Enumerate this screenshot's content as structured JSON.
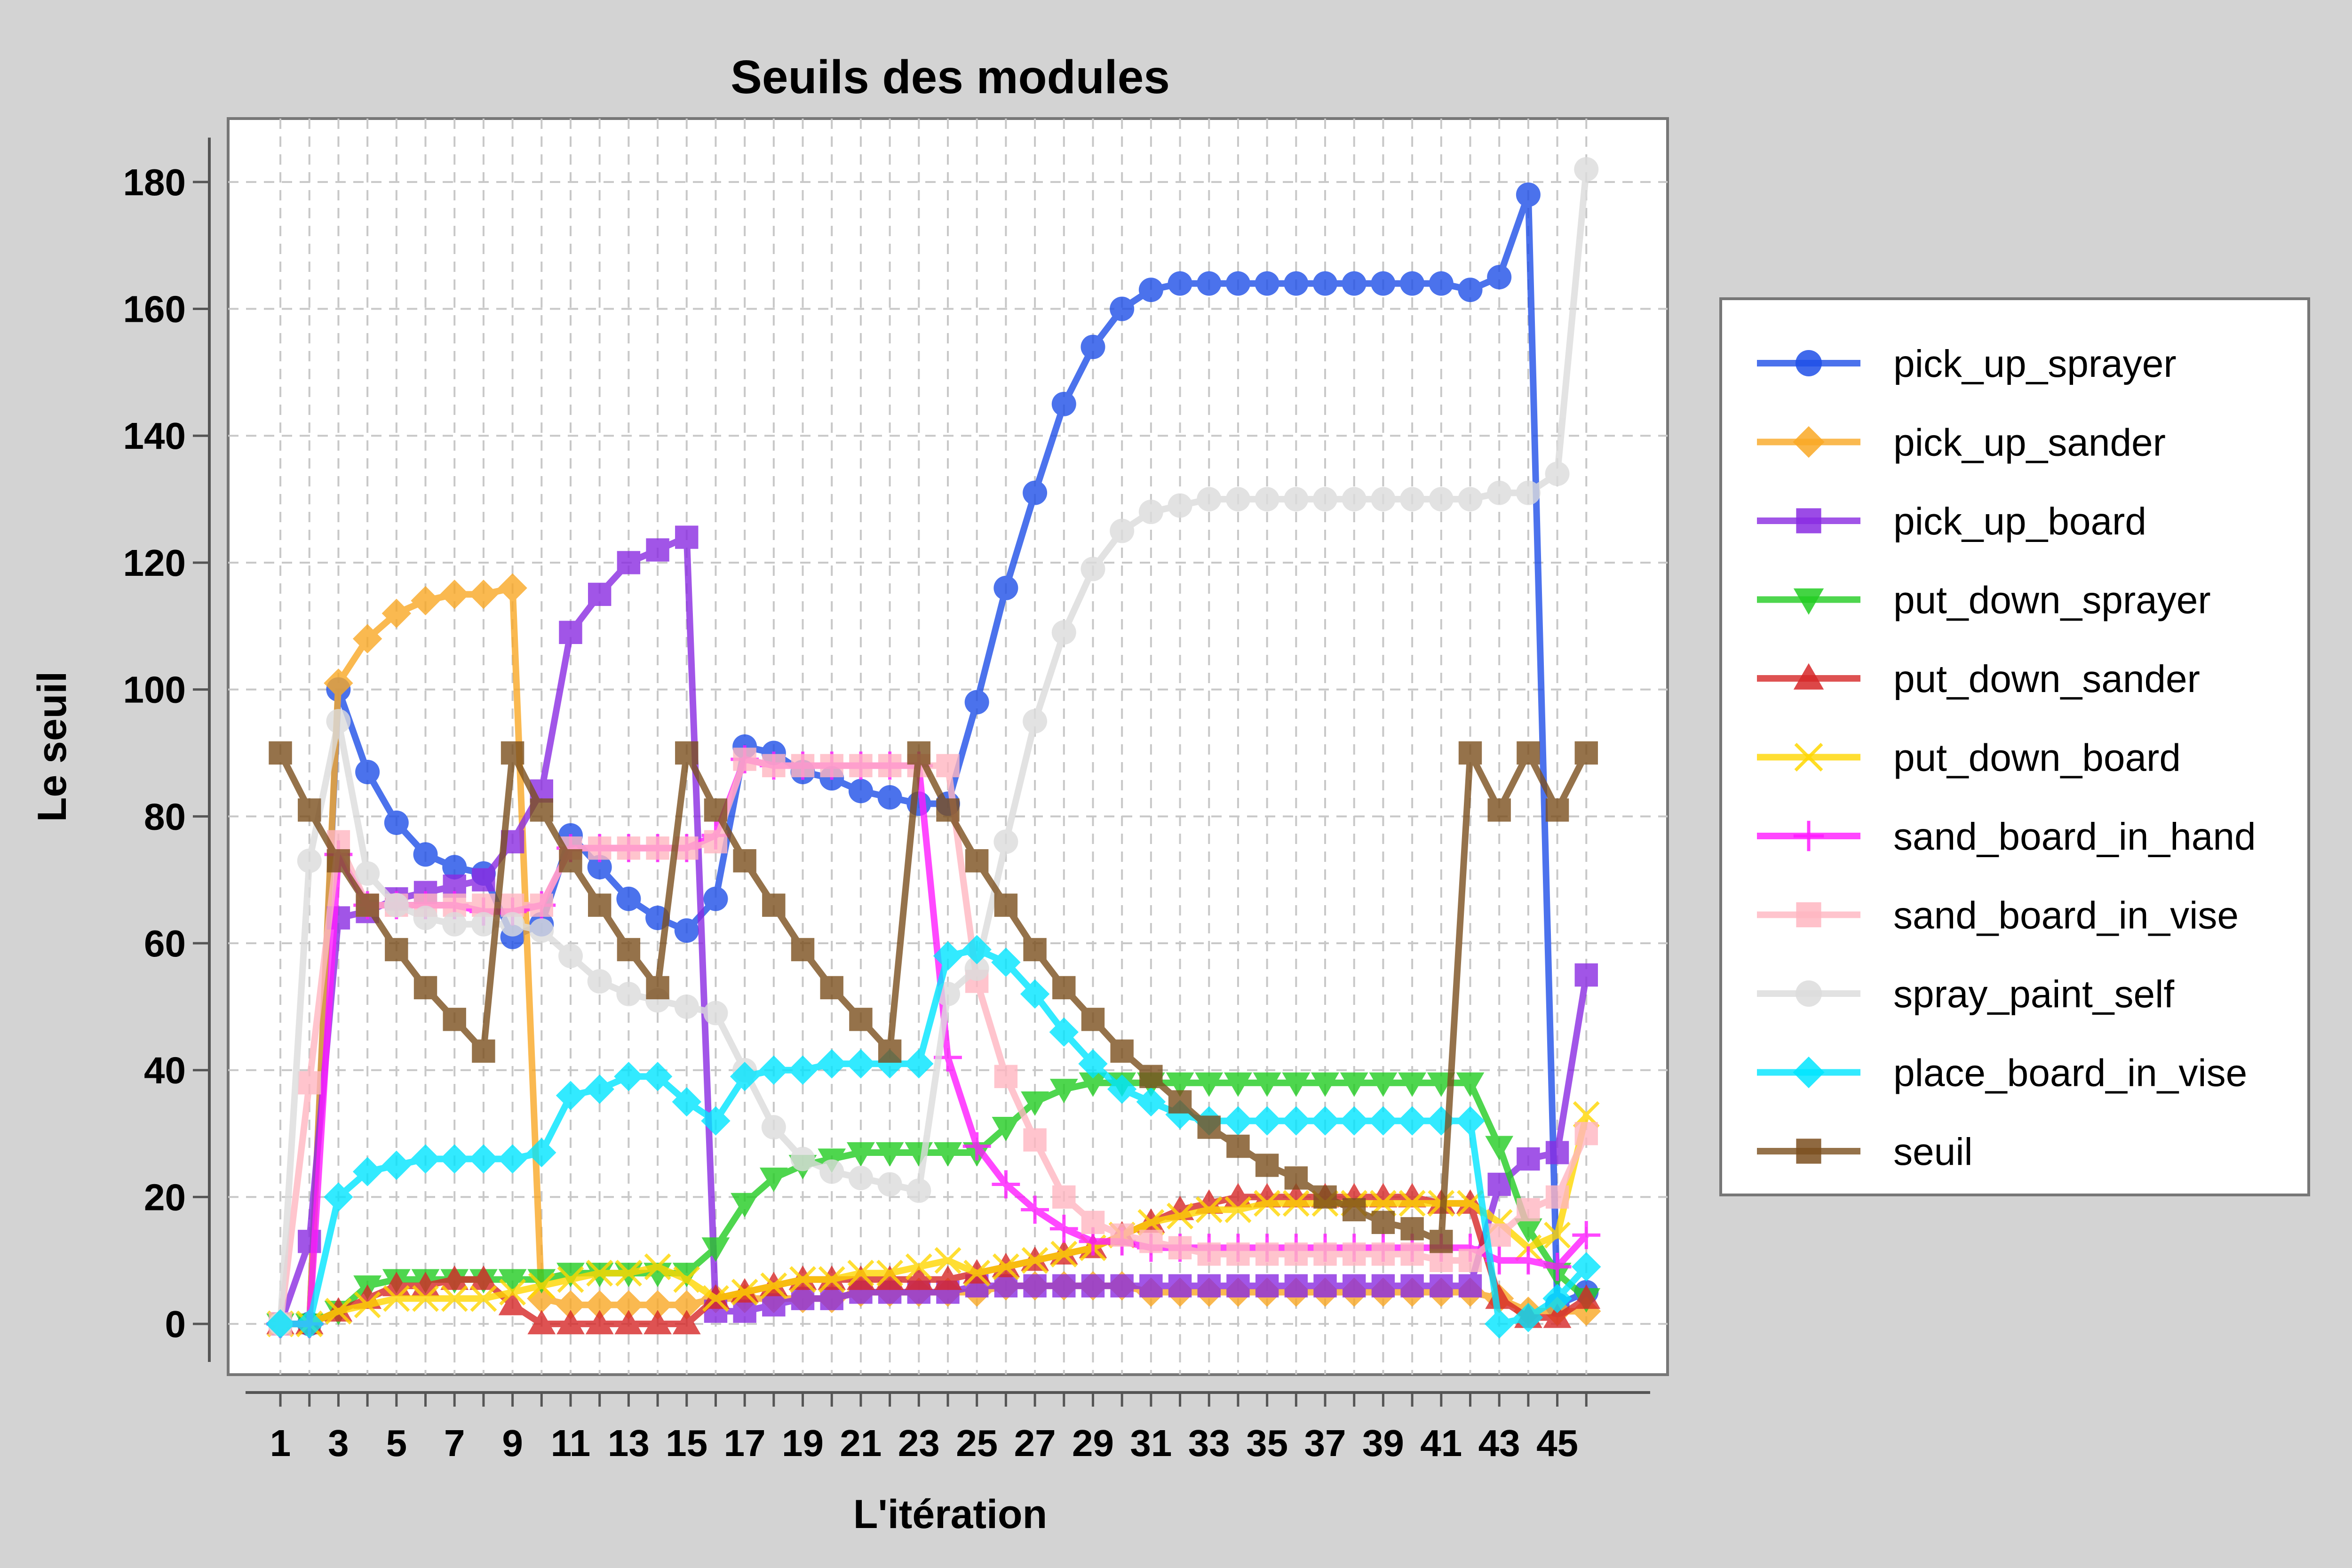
{
  "chart_data": {
    "type": "line",
    "title": "Seuils des modules",
    "xlabel": "L'itération",
    "ylabel": "Le seuil",
    "x_ticks": [
      "1",
      "3",
      "5",
      "7",
      "9",
      "11",
      "13",
      "15",
      "17",
      "19",
      "21",
      "23",
      "25",
      "27",
      "29",
      "31",
      "33",
      "35",
      "37",
      "39",
      "41",
      "43",
      "45"
    ],
    "y_ticks": [
      0,
      20,
      40,
      60,
      80,
      100,
      120,
      140,
      160,
      180
    ],
    "xlim": [
      -0.8,
      48.8
    ],
    "ylim": [
      -8,
      190
    ],
    "grid": true,
    "legend_position": "right",
    "x": [
      1,
      2,
      3,
      4,
      5,
      6,
      7,
      8,
      9,
      10,
      11,
      12,
      13,
      14,
      15,
      16,
      17,
      18,
      19,
      20,
      21,
      22,
      23,
      24,
      25,
      26,
      27,
      28,
      29,
      30,
      31,
      32,
      33,
      34,
      35,
      36,
      37,
      38,
      39,
      40,
      41,
      42,
      43,
      44,
      45,
      46
    ],
    "series": [
      {
        "name": "pick_up_sprayer",
        "color": "#1f4fe8",
        "marker": "circle",
        "values": [
          0,
          0,
          100,
          87,
          79,
          74,
          72,
          71,
          61,
          63,
          77,
          72,
          67,
          64,
          62,
          67,
          91,
          90,
          87,
          86,
          84,
          83,
          82,
          82,
          98,
          116,
          131,
          145,
          154,
          160,
          163,
          164,
          164,
          164,
          164,
          164,
          164,
          164,
          164,
          164,
          164,
          163,
          165,
          178,
          3,
          5
        ]
      },
      {
        "name": "pick_up_sander",
        "color": "#f9a825",
        "marker": "diamond",
        "values": [
          0,
          0,
          101,
          108,
          112,
          114,
          115,
          115,
          116,
          4,
          3,
          3,
          3,
          3,
          3,
          4,
          4,
          4,
          4,
          4,
          5,
          5,
          5,
          5,
          5,
          6,
          6,
          6,
          6,
          6,
          5,
          5,
          5,
          5,
          5,
          5,
          5,
          5,
          5,
          5,
          5,
          5,
          4,
          2,
          2,
          2
        ]
      },
      {
        "name": "pick_up_board",
        "color": "#8a2be2",
        "marker": "square",
        "values": [
          0,
          13,
          64,
          65,
          67,
          68,
          69,
          70,
          76,
          84,
          109,
          115,
          120,
          122,
          124,
          2,
          2,
          3,
          4,
          4,
          5,
          5,
          5,
          5,
          6,
          6,
          6,
          6,
          6,
          6,
          6,
          6,
          6,
          6,
          6,
          6,
          6,
          6,
          6,
          6,
          6,
          6,
          22,
          26,
          27,
          55
        ]
      },
      {
        "name": "put_down_sprayer",
        "color": "#22cc22",
        "marker": "triangle-down",
        "values": [
          0,
          0,
          2,
          6,
          7,
          7,
          7,
          7,
          7,
          7,
          8,
          8,
          8,
          8,
          8,
          12,
          19,
          23,
          25,
          26,
          27,
          27,
          27,
          27,
          27,
          31,
          35,
          37,
          38,
          38,
          38,
          38,
          38,
          38,
          38,
          38,
          38,
          38,
          38,
          38,
          38,
          38,
          28,
          15,
          8,
          4
        ]
      },
      {
        "name": "put_down_sander",
        "color": "#d62728",
        "marker": "triangle-up",
        "values": [
          0,
          0,
          2,
          4,
          6,
          6,
          7,
          7,
          3,
          0,
          0,
          0,
          0,
          0,
          0,
          4,
          5,
          6,
          7,
          7,
          7,
          7,
          7,
          7,
          8,
          9,
          10,
          11,
          12,
          14,
          16,
          18,
          19,
          20,
          20,
          20,
          20,
          20,
          20,
          20,
          19,
          19,
          4,
          1,
          1,
          4
        ]
      },
      {
        "name": "put_down_board",
        "color": "#ffd700",
        "marker": "x",
        "values": [
          0,
          0,
          2,
          3,
          4,
          4,
          4,
          4,
          5,
          6,
          7,
          8,
          8,
          9,
          7,
          4,
          5,
          6,
          7,
          7,
          8,
          8,
          9,
          10,
          8,
          9,
          10,
          11,
          12,
          14,
          16,
          17,
          18,
          18,
          19,
          19,
          19,
          19,
          19,
          19,
          19,
          19,
          16,
          12,
          14,
          33
        ]
      },
      {
        "name": "sand_board_in_hand",
        "color": "#ff1aff",
        "marker": "plus",
        "values": [
          0,
          0,
          74,
          66,
          66,
          66,
          66,
          65,
          65,
          66,
          75,
          75,
          75,
          75,
          75,
          77,
          89,
          88,
          88,
          88,
          88,
          88,
          88,
          42,
          28,
          22,
          18,
          15,
          13,
          13,
          12,
          12,
          12,
          12,
          12,
          12,
          12,
          12,
          12,
          12,
          12,
          12,
          10,
          10,
          9,
          14
        ]
      },
      {
        "name": "sand_board_in_vise",
        "color": "#ffb6c1",
        "marker": "square",
        "values": [
          0,
          38,
          76,
          66,
          66,
          66,
          66,
          66,
          66,
          66,
          75,
          75,
          75,
          75,
          75,
          76,
          89,
          88,
          88,
          88,
          88,
          88,
          88,
          88,
          54,
          39,
          29,
          20,
          16,
          14,
          13,
          12,
          11,
          11,
          11,
          11,
          11,
          11,
          11,
          11,
          10,
          10,
          14,
          18,
          20,
          30
        ]
      },
      {
        "name": "spray_paint_self",
        "color": "#dcdcdc",
        "marker": "circle",
        "values": [
          0,
          73,
          95,
          71,
          66,
          64,
          63,
          63,
          63,
          62,
          58,
          54,
          52,
          51,
          50,
          49,
          40,
          31,
          26,
          24,
          23,
          22,
          21,
          52,
          56,
          76,
          95,
          109,
          119,
          125,
          128,
          129,
          130,
          130,
          130,
          130,
          130,
          130,
          130,
          130,
          130,
          130,
          131,
          131,
          134,
          182
        ]
      },
      {
        "name": "place_board_in_vise",
        "color": "#00e5ff",
        "marker": "diamond",
        "values": [
          0,
          0,
          20,
          24,
          25,
          26,
          26,
          26,
          26,
          27,
          36,
          37,
          39,
          39,
          35,
          32,
          39,
          40,
          40,
          41,
          41,
          41,
          41,
          58,
          59,
          57,
          52,
          46,
          41,
          37,
          35,
          33,
          32,
          32,
          32,
          32,
          32,
          32,
          32,
          32,
          32,
          32,
          0,
          1,
          4,
          9
        ]
      },
      {
        "name": "seuil",
        "color": "#7b4f1e",
        "marker": "square",
        "values": [
          90,
          81,
          73,
          66,
          59,
          53,
          48,
          43,
          90,
          81,
          73,
          66,
          59,
          53,
          90,
          81,
          73,
          66,
          59,
          53,
          48,
          43,
          90,
          81,
          73,
          66,
          59,
          53,
          48,
          43,
          39,
          35,
          31,
          28,
          25,
          23,
          20,
          18,
          16,
          15,
          13,
          90,
          81,
          90,
          81,
          90
        ]
      }
    ]
  }
}
